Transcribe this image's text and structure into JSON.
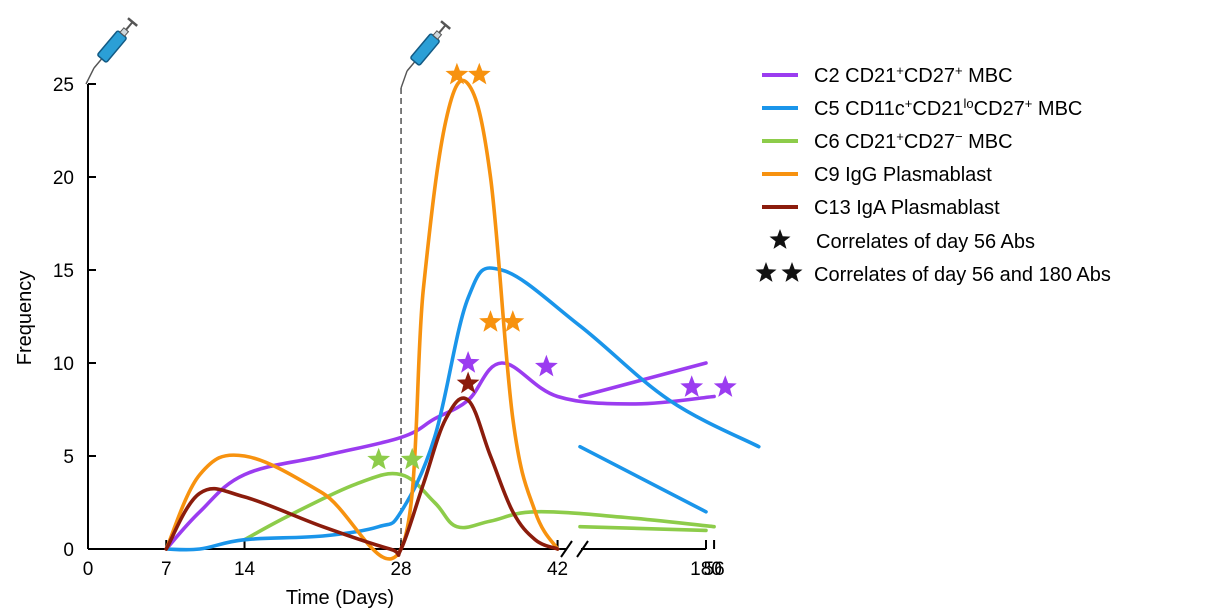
{
  "chart_data": {
    "type": "line",
    "xlabel": "Time (Days)",
    "ylabel": "Frequency",
    "ylim": [
      0,
      25
    ],
    "y_ticks": [
      "0",
      "5",
      "10",
      "15",
      "20",
      "25"
    ],
    "x_ticks": [
      "0",
      "7",
      "14",
      "28",
      "42",
      "56",
      "180"
    ],
    "x_tick_values": [
      0,
      7,
      14,
      28,
      42,
      56,
      180
    ],
    "axis_break_between": [
      56,
      180
    ],
    "vaccination_days": [
      0,
      28
    ],
    "series": [
      {
        "name": "C2 CD21+CD27+ MBC",
        "legend": {
          "pre": "C2 CD21",
          "s1": "+",
          "mid": "CD27",
          "s2": "+",
          "post": " MBC"
        },
        "color": "#9b3cf0",
        "points": [
          [
            7,
            0
          ],
          [
            10,
            2
          ],
          [
            14,
            4
          ],
          [
            21,
            5
          ],
          [
            28,
            6
          ],
          [
            31,
            7
          ],
          [
            34,
            8
          ],
          [
            37,
            10
          ],
          [
            42,
            8.2
          ],
          [
            49,
            7.8
          ],
          [
            56,
            8.2
          ],
          [
            180,
            10
          ]
        ],
        "stars": [
          [
            34,
            10
          ],
          [
            41,
            9.8
          ],
          [
            54,
            8.7
          ],
          [
            57,
            8.7
          ]
        ]
      },
      {
        "name": "C5 CD11c+CD21loCD27+ MBC",
        "legend": {
          "pre": "C5 CD11c",
          "s1": "+",
          "mid": "CD21",
          "s2": "lo",
          "mid2": "CD27",
          "s3": "+",
          "post": " MBC"
        },
        "color": "#1a95ea",
        "points": [
          [
            7,
            0
          ],
          [
            10,
            0
          ],
          [
            14,
            0.5
          ],
          [
            21,
            0.7
          ],
          [
            26,
            1.2
          ],
          [
            28,
            2
          ],
          [
            31,
            6
          ],
          [
            34,
            13.5
          ],
          [
            37,
            15
          ],
          [
            44,
            12
          ],
          [
            52,
            8
          ],
          [
            60,
            5.5
          ],
          [
            180,
            2
          ]
        ],
        "stars": []
      },
      {
        "name": "C6 CD21+CD27− MBC",
        "legend": {
          "pre": "C6 CD21",
          "s1": "+",
          "mid": "CD27",
          "s2": "−",
          "post": " MBC"
        },
        "color": "#8dcc4a",
        "points": [
          [
            14,
            0.5
          ],
          [
            18,
            1.8
          ],
          [
            24,
            3.5
          ],
          [
            28,
            4
          ],
          [
            31,
            2.5
          ],
          [
            33,
            1.2
          ],
          [
            36,
            1.5
          ],
          [
            40,
            2
          ],
          [
            48,
            1.7
          ],
          [
            56,
            1.2
          ],
          [
            180,
            1
          ]
        ],
        "stars": [
          [
            26,
            4.8
          ],
          [
            29,
            4.8
          ]
        ]
      },
      {
        "name": "C9 IgG Plasmablast",
        "legend": {
          "pre": "C9 IgG Plasmablast"
        },
        "color": "#f7920f",
        "points": [
          [
            7,
            0
          ],
          [
            10,
            4
          ],
          [
            14,
            5
          ],
          [
            21,
            3
          ],
          [
            28,
            0
          ],
          [
            30,
            14
          ],
          [
            32,
            23
          ],
          [
            34,
            25
          ],
          [
            36,
            20
          ],
          [
            38,
            7
          ],
          [
            40,
            2
          ],
          [
            42,
            0
          ]
        ],
        "stars": [
          [
            33,
            25.5
          ],
          [
            35,
            25.5
          ],
          [
            36,
            12.2
          ],
          [
            38,
            12.2
          ]
        ]
      },
      {
        "name": "C13 IgA Plasmablast",
        "legend": {
          "pre": "C13 IgA Plasmablast"
        },
        "color": "#8b1c0c",
        "points": [
          [
            7,
            0
          ],
          [
            10,
            3
          ],
          [
            14,
            2.8
          ],
          [
            21,
            1.2
          ],
          [
            27,
            0
          ],
          [
            28,
            0
          ],
          [
            30,
            3.5
          ],
          [
            32,
            7
          ],
          [
            34,
            8
          ],
          [
            36,
            5
          ],
          [
            38,
            2
          ],
          [
            40,
            0.5
          ],
          [
            42,
            0
          ]
        ],
        "stars": [
          [
            34,
            8.9
          ]
        ]
      }
    ],
    "legend_extra": [
      {
        "label": "Correlates of day 56 Abs",
        "stars": 1
      },
      {
        "label": "Correlates of day 56 and 180 Abs",
        "stars": 2
      }
    ],
    "legend_placement": "right",
    "grid": false
  }
}
